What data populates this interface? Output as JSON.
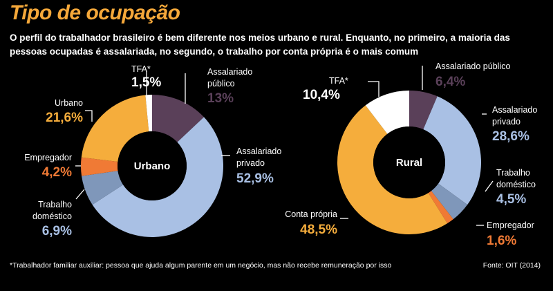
{
  "header": {
    "title": "Tipo de ocupação",
    "subtitle": "O perfil do trabalhador brasileiro é bem diferente nos meios urbano e rural. Enquanto, no primeiro, a maioria das pessoas ocupadas é assalariada, no segundo, o trabalho por conta própria é o mais comum"
  },
  "footer": {
    "footnote": "*Trabalhador familiar auxiliar: pessoa que ajuda algum parente em um negócio, mas não recebe remuneração por isso",
    "source": "Fonte: OIT (2014)"
  },
  "chart_data": [
    {
      "type": "pie",
      "center_label": "Urbano",
      "slices": [
        {
          "key": "assalariado_publico",
          "label": "Assalariado público",
          "value": 13.0,
          "value_label": "13%",
          "color": "#5a4059",
          "value_color": "#5a4059"
        },
        {
          "key": "assalariado_privado",
          "label": "Assalariado privado",
          "value": 52.9,
          "value_label": "52,9%",
          "color": "#a9c0e4",
          "value_color": "#a9c0e4"
        },
        {
          "key": "trabalho_domestico",
          "label": "Trabalho doméstico",
          "value": 6.9,
          "value_label": "6,9%",
          "color": "#7f97ba",
          "value_color": "#a9c0e4"
        },
        {
          "key": "empregador",
          "label": "Empregador",
          "value": 4.2,
          "value_label": "4,2%",
          "color": "#f07a35",
          "value_color": "#f07a35"
        },
        {
          "key": "urbano",
          "label": "Urbano",
          "value": 21.6,
          "value_label": "21,6%",
          "color": "#f5ad3c",
          "value_color": "#f5ad3c"
        },
        {
          "key": "tfa",
          "label": "TFA*",
          "value": 1.5,
          "value_label": "1,5%",
          "color": "#ffffff",
          "value_color": "#ffffff"
        }
      ]
    },
    {
      "type": "pie",
      "center_label": "Rural",
      "slices": [
        {
          "key": "assalariado_publico",
          "label": "Assalariado público",
          "value": 6.4,
          "value_label": "6,4%",
          "color": "#5a4059",
          "value_color": "#5a4059"
        },
        {
          "key": "assalariado_privado",
          "label": "Assalariado privado",
          "value": 28.6,
          "value_label": "28,6%",
          "color": "#a9c0e4",
          "value_color": "#a9c0e4"
        },
        {
          "key": "trabalho_domestico",
          "label": "Trabalho doméstico",
          "value": 4.5,
          "value_label": "4,5%",
          "color": "#7f97ba",
          "value_color": "#a9c0e4"
        },
        {
          "key": "empregador",
          "label": "Empregador",
          "value": 1.6,
          "value_label": "1,6%",
          "color": "#f07a35",
          "value_color": "#f07a35"
        },
        {
          "key": "conta_propria",
          "label": "Conta própria",
          "value": 48.5,
          "value_label": "48,5%",
          "color": "#f5ad3c",
          "value_color": "#f5ad3c"
        },
        {
          "key": "tfa",
          "label": "TFA*",
          "value": 10.4,
          "value_label": "10,4%",
          "color": "#ffffff",
          "value_color": "#ffffff"
        }
      ]
    }
  ]
}
